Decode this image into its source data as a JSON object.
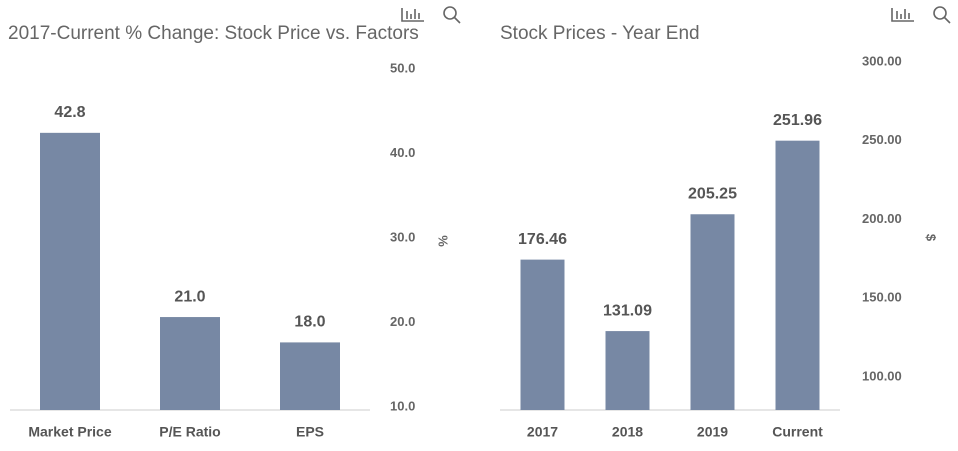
{
  "chart_data": [
    {
      "type": "bar",
      "title": "2017-Current % Change: Stock Price vs. Factors",
      "categories": [
        "Market Price",
        "P/E Ratio",
        "EPS"
      ],
      "values": [
        42.8,
        21.0,
        18.0
      ],
      "value_labels": [
        "42.8",
        "21.0",
        "18.0"
      ],
      "color": "#7788a4",
      "ylabel": "%",
      "ylim": [
        10,
        50
      ],
      "yticks": [
        {
          "value": 10,
          "label": "10.0"
        },
        {
          "value": 20,
          "label": "20.0"
        },
        {
          "value": 30,
          "label": "30.0"
        },
        {
          "value": 40,
          "label": "40.0"
        },
        {
          "value": 50,
          "label": "50.0"
        }
      ],
      "yaxis_side": "right",
      "grid": false
    },
    {
      "type": "bar",
      "title": "Stock Prices - Year End",
      "categories": [
        "2017",
        "2018",
        "2019",
        "Current"
      ],
      "values": [
        176.46,
        131.09,
        205.25,
        251.96
      ],
      "color": "#7788a4",
      "ylabel": "$",
      "ylim": [
        81,
        300
      ],
      "yticks": [
        {
          "value": 100,
          "label": "100.00"
        },
        {
          "value": 150,
          "label": "150.00"
        },
        {
          "value": 200,
          "label": "200.00"
        },
        {
          "value": 250,
          "label": "250.00"
        },
        {
          "value": 300,
          "label": "300.00"
        }
      ],
      "yaxis_side": "right",
      "grid": false
    }
  ]
}
